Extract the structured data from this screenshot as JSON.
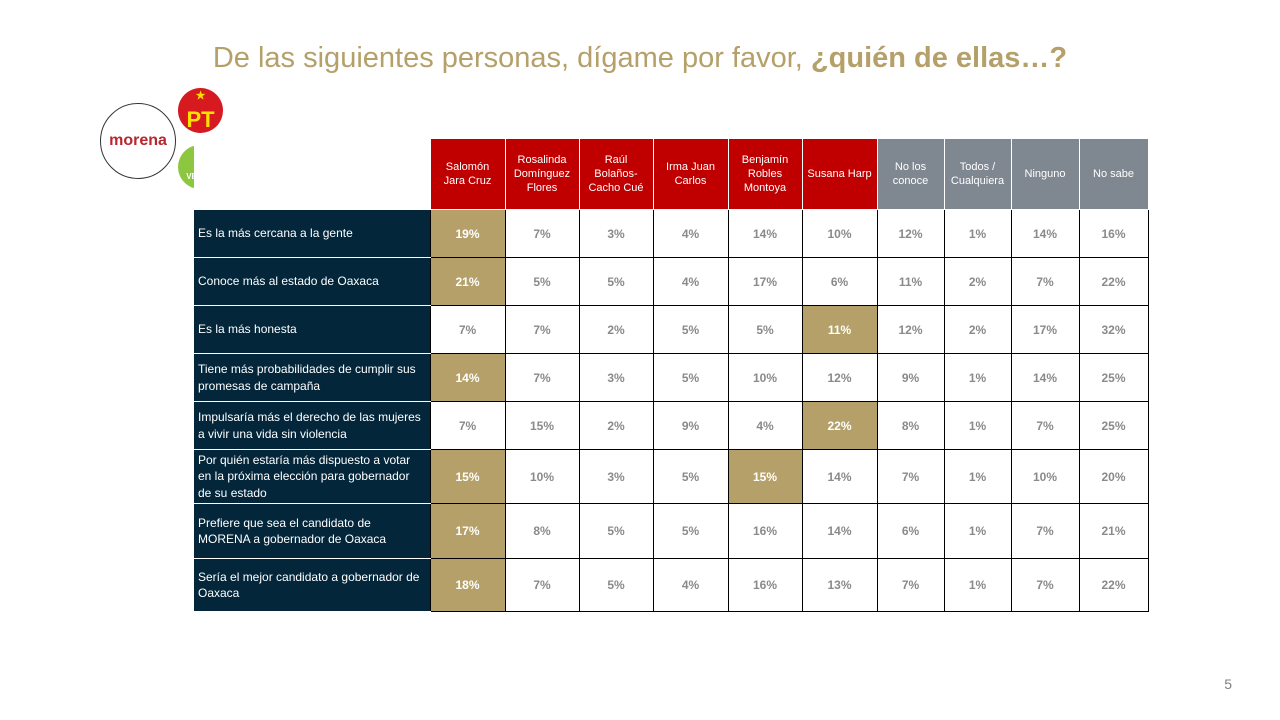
{
  "title": {
    "main": "De las siguientes personas, dígame por favor, ",
    "bold": "¿quién de ellas…?"
  },
  "logos": {
    "morena": "morena",
    "pt": "PT",
    "verde": "VERDE"
  },
  "colors": {
    "candidate_header": "#c00000",
    "other_header": "#7f8790",
    "row_label_bg": "#03263a",
    "highlight": "#b5a06a"
  },
  "page_number": "5",
  "chart_data": {
    "type": "table",
    "title": "De las siguientes personas, dígame por favor, ¿quién de ellas…?",
    "columns": [
      {
        "label": "Salomón Jara Cruz",
        "group": "candidate"
      },
      {
        "label": "Rosalinda Domínguez Flores",
        "group": "candidate"
      },
      {
        "label": "Raúl Bolaños-Cacho Cué",
        "group": "candidate"
      },
      {
        "label": "Irma Juan Carlos",
        "group": "candidate"
      },
      {
        "label": "Benjamín Robles Montoya",
        "group": "candidate"
      },
      {
        "label": "Susana Harp",
        "group": "candidate"
      },
      {
        "label": "No los conoce",
        "group": "other"
      },
      {
        "label": "Todos / Cualquiera",
        "group": "other"
      },
      {
        "label": "Ninguno",
        "group": "other"
      },
      {
        "label": "No sabe",
        "group": "other"
      }
    ],
    "rows": [
      {
        "label": "Es la más cercana a la gente",
        "values": [
          "19%",
          "7%",
          "3%",
          "4%",
          "14%",
          "10%",
          "12%",
          "1%",
          "14%",
          "16%"
        ],
        "highlight": [
          0
        ]
      },
      {
        "label": "Conoce más al estado de Oaxaca",
        "values": [
          "21%",
          "5%",
          "5%",
          "4%",
          "17%",
          "6%",
          "11%",
          "2%",
          "7%",
          "22%"
        ],
        "highlight": [
          0
        ]
      },
      {
        "label": "Es la más honesta",
        "values": [
          "7%",
          "7%",
          "2%",
          "5%",
          "5%",
          "11%",
          "12%",
          "2%",
          "17%",
          "32%"
        ],
        "highlight": [
          5
        ]
      },
      {
        "label": "Tiene más probabilidades de cumplir sus promesas de campaña",
        "values": [
          "14%",
          "7%",
          "3%",
          "5%",
          "10%",
          "12%",
          "9%",
          "1%",
          "14%",
          "25%"
        ],
        "highlight": [
          0
        ]
      },
      {
        "label": "Impulsaría más el derecho de las mujeres a vivir una vida sin violencia",
        "values": [
          "7%",
          "15%",
          "2%",
          "9%",
          "4%",
          "22%",
          "8%",
          "1%",
          "7%",
          "25%"
        ],
        "highlight": [
          5
        ]
      },
      {
        "label": "Por quién estaría más dispuesto a votar en la próxima elección para gobernador de su estado",
        "values": [
          "15%",
          "10%",
          "3%",
          "5%",
          "15%",
          "14%",
          "7%",
          "1%",
          "10%",
          "20%"
        ],
        "highlight": [
          0,
          4
        ]
      },
      {
        "label": "Prefiere que sea el candidato de MORENA a gobernador de Oaxaca",
        "values": [
          "17%",
          "8%",
          "5%",
          "5%",
          "16%",
          "14%",
          "6%",
          "1%",
          "7%",
          "21%"
        ],
        "highlight": [
          0
        ]
      },
      {
        "label": "Sería el mejor candidato a gobernador de Oaxaca",
        "values": [
          "18%",
          "7%",
          "5%",
          "4%",
          "16%",
          "13%",
          "7%",
          "1%",
          "7%",
          "22%"
        ],
        "highlight": [
          0
        ]
      }
    ]
  }
}
